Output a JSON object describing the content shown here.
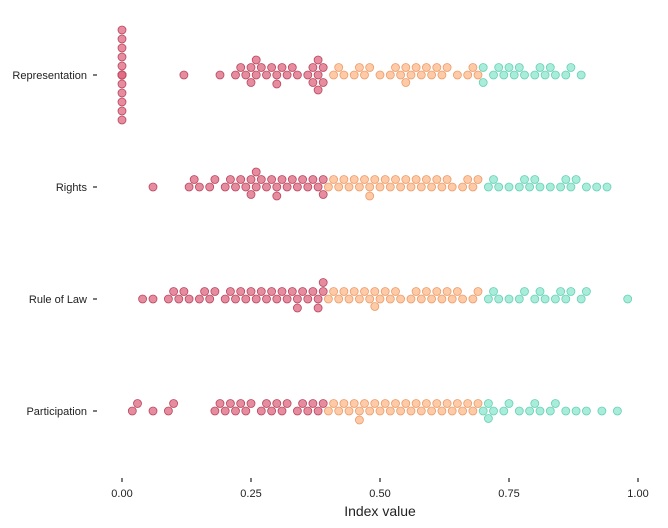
{
  "chart_data": {
    "type": "scatter",
    "subtype": "beeswarm",
    "title": "",
    "xlabel": "Index value",
    "ylabel": "",
    "xlim": [
      0,
      1
    ],
    "x_ticks": [
      0.0,
      0.25,
      0.5,
      0.75,
      1.0
    ],
    "x_tick_labels": [
      "0.00",
      "0.25",
      "0.50",
      "0.75",
      "1.00"
    ],
    "categories": [
      "Representation",
      "Rights",
      "Rule of Law",
      "Participation"
    ],
    "grid": false,
    "legend": "none",
    "color_bins": [
      {
        "range": [
          0.0,
          0.4
        ],
        "color": "#e06b84"
      },
      {
        "range": [
          0.4,
          0.7
        ],
        "color": "#ffbb8c"
      },
      {
        "range": [
          0.7,
          1.0
        ],
        "color": "#8ee8d0"
      }
    ],
    "series": [
      {
        "category": "Representation",
        "values": [
          0,
          0,
          0,
          0,
          0,
          0,
          0,
          0,
          0,
          0,
          0,
          0,
          0,
          0,
          0,
          0,
          0,
          0,
          0,
          0,
          0.12,
          0.19,
          0.22,
          0.23,
          0.24,
          0.25,
          0.25,
          0.26,
          0.26,
          0.27,
          0.28,
          0.29,
          0.3,
          0.3,
          0.31,
          0.32,
          0.33,
          0.34,
          0.36,
          0.37,
          0.37,
          0.38,
          0.38,
          0.38,
          0.39,
          0.39,
          0.41,
          0.42,
          0.43,
          0.45,
          0.46,
          0.47,
          0.48,
          0.5,
          0.52,
          0.53,
          0.54,
          0.55,
          0.55,
          0.56,
          0.57,
          0.58,
          0.59,
          0.6,
          0.61,
          0.62,
          0.63,
          0.65,
          0.67,
          0.68,
          0.69,
          0.7,
          0.7,
          0.72,
          0.73,
          0.74,
          0.75,
          0.76,
          0.77,
          0.78,
          0.8,
          0.81,
          0.82,
          0.83,
          0.84,
          0.86,
          0.87,
          0.89
        ]
      },
      {
        "category": "Rights",
        "values": [
          0.06,
          0.13,
          0.14,
          0.15,
          0.17,
          0.18,
          0.2,
          0.21,
          0.22,
          0.23,
          0.24,
          0.25,
          0.25,
          0.26,
          0.26,
          0.27,
          0.28,
          0.29,
          0.3,
          0.3,
          0.31,
          0.32,
          0.33,
          0.34,
          0.35,
          0.36,
          0.37,
          0.38,
          0.39,
          0.39,
          0.4,
          0.41,
          0.42,
          0.43,
          0.44,
          0.45,
          0.46,
          0.47,
          0.48,
          0.48,
          0.49,
          0.5,
          0.51,
          0.52,
          0.53,
          0.54,
          0.55,
          0.56,
          0.57,
          0.58,
          0.59,
          0.6,
          0.61,
          0.62,
          0.63,
          0.64,
          0.66,
          0.67,
          0.68,
          0.69,
          0.71,
          0.72,
          0.73,
          0.75,
          0.77,
          0.78,
          0.79,
          0.8,
          0.81,
          0.83,
          0.85,
          0.86,
          0.87,
          0.88,
          0.9,
          0.92,
          0.94
        ]
      },
      {
        "category": "Rule of Law",
        "values": [
          0.04,
          0.06,
          0.09,
          0.1,
          0.11,
          0.12,
          0.13,
          0.15,
          0.16,
          0.17,
          0.18,
          0.2,
          0.21,
          0.22,
          0.23,
          0.24,
          0.25,
          0.26,
          0.27,
          0.28,
          0.29,
          0.3,
          0.31,
          0.32,
          0.33,
          0.34,
          0.34,
          0.35,
          0.36,
          0.37,
          0.38,
          0.38,
          0.39,
          0.39,
          0.4,
          0.41,
          0.42,
          0.43,
          0.44,
          0.45,
          0.46,
          0.47,
          0.48,
          0.49,
          0.49,
          0.5,
          0.51,
          0.52,
          0.53,
          0.54,
          0.56,
          0.57,
          0.58,
          0.59,
          0.6,
          0.61,
          0.62,
          0.63,
          0.64,
          0.65,
          0.66,
          0.68,
          0.69,
          0.71,
          0.72,
          0.73,
          0.75,
          0.77,
          0.78,
          0.8,
          0.81,
          0.82,
          0.84,
          0.85,
          0.86,
          0.87,
          0.89,
          0.9,
          0.98
        ]
      },
      {
        "category": "Participation",
        "values": [
          0.02,
          0.03,
          0.06,
          0.09,
          0.1,
          0.18,
          0.19,
          0.2,
          0.21,
          0.22,
          0.23,
          0.24,
          0.25,
          0.27,
          0.28,
          0.29,
          0.3,
          0.31,
          0.32,
          0.34,
          0.35,
          0.36,
          0.37,
          0.38,
          0.39,
          0.4,
          0.41,
          0.42,
          0.43,
          0.44,
          0.45,
          0.46,
          0.46,
          0.47,
          0.48,
          0.49,
          0.5,
          0.51,
          0.52,
          0.53,
          0.54,
          0.55,
          0.56,
          0.57,
          0.58,
          0.59,
          0.6,
          0.61,
          0.62,
          0.63,
          0.64,
          0.65,
          0.66,
          0.67,
          0.68,
          0.69,
          0.7,
          0.71,
          0.71,
          0.72,
          0.74,
          0.75,
          0.77,
          0.79,
          0.8,
          0.81,
          0.83,
          0.84,
          0.86,
          0.88,
          0.9,
          0.93,
          0.96
        ]
      }
    ]
  }
}
